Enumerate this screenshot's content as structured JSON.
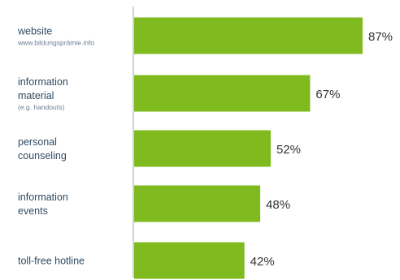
{
  "chart_data": {
    "type": "bar",
    "orientation": "horizontal",
    "categories": [
      "website www.bildungsprämie.info",
      "information material (e.g. handouts)",
      "personal counseling",
      "information events",
      "toll-free hotline"
    ],
    "category_labels": [
      {
        "lines": [
          "website"
        ],
        "sub": [
          "www.bildungsprämie.info"
        ]
      },
      {
        "lines": [
          "information",
          "material"
        ],
        "sub": [
          "(e.g. handouts)"
        ]
      },
      {
        "lines": [
          "personal",
          "counseling"
        ],
        "sub": []
      },
      {
        "lines": [
          "information",
          "events"
        ],
        "sub": []
      },
      {
        "lines": [
          "toll-free hotline"
        ],
        "sub": []
      }
    ],
    "values": [
      87,
      67,
      52,
      48,
      42
    ],
    "value_labels": [
      "87%",
      "67%",
      "52%",
      "48%",
      "42%"
    ],
    "unit": "%",
    "title": "",
    "xlabel": "",
    "ylabel": "",
    "xlim": [
      0,
      100
    ],
    "grid": false,
    "legend": "none",
    "colors": {
      "bar": "#7fbb1f",
      "axis": "#9aa3ab"
    }
  }
}
